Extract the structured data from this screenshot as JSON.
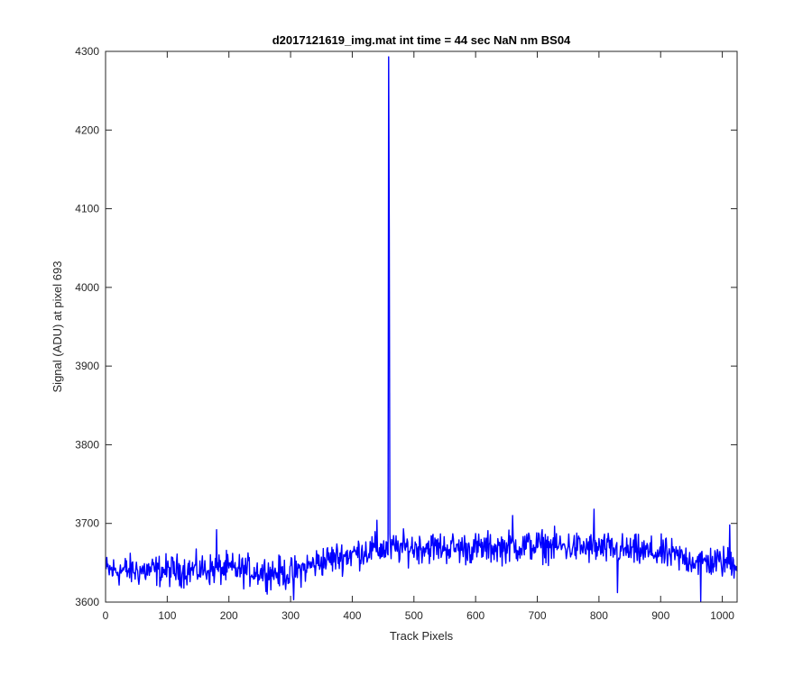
{
  "chart_data": {
    "type": "line",
    "title": "d2017121619_img.mat int time = 44 sec  NaN nm BS04",
    "xlabel": "Track Pixels",
    "ylabel": "Signal (ADU) at pixel 693",
    "xlim": [
      0,
      1024
    ],
    "ylim": [
      3600,
      4300
    ],
    "xticks": [
      0,
      100,
      200,
      300,
      400,
      500,
      600,
      700,
      800,
      900,
      1000
    ],
    "yticks": [
      3600,
      3700,
      3800,
      3900,
      4000,
      4100,
      4200,
      4300
    ],
    "grid": false,
    "legend": "none",
    "series_color": "#0000ff",
    "x_start": 1,
    "x_end": 1024,
    "baseline_knots": {
      "x": [
        1,
        100,
        200,
        300,
        350,
        420,
        460,
        520,
        600,
        700,
        800,
        900,
        960,
        1024
      ],
      "y": [
        3640,
        3640,
        3642,
        3636,
        3652,
        3665,
        3668,
        3670,
        3668,
        3672,
        3668,
        3662,
        3652,
        3650
      ]
    },
    "noise_amplitude": 11,
    "peaks": [
      {
        "x": 459,
        "y": 4293
      },
      {
        "x": 458,
        "y": 3660
      },
      {
        "x": 460,
        "y": 4075
      }
    ],
    "notable_points": [
      {
        "x": 180,
        "y": 3692
      },
      {
        "x": 305,
        "y": 3603
      },
      {
        "x": 440,
        "y": 3704
      },
      {
        "x": 660,
        "y": 3710
      },
      {
        "x": 792,
        "y": 3718
      },
      {
        "x": 830,
        "y": 3612
      },
      {
        "x": 965,
        "y": 3601
      },
      {
        "x": 1012,
        "y": 3698
      }
    ]
  }
}
